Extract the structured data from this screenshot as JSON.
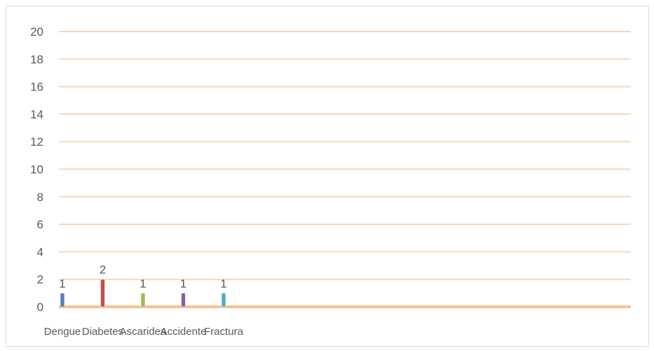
{
  "chart_data": {
    "type": "bar",
    "categories": [
      "Dengue",
      "Diabetes",
      "Ascaridea",
      "Accidente",
      "Fractura"
    ],
    "values": [
      1,
      2,
      1,
      1,
      1
    ],
    "data_labels": [
      "1",
      "2",
      "1",
      "1",
      "1"
    ],
    "title": "",
    "xlabel": "",
    "ylabel": "",
    "ylim": [
      0,
      20
    ],
    "yticks": [
      "0",
      "2",
      "4",
      "6",
      "8",
      "10",
      "12",
      "14",
      "16",
      "18",
      "20"
    ],
    "grid": true,
    "legend": "none",
    "colors": {
      "bars": [
        "#4f81bd",
        "#c0504d",
        "#9bbb59",
        "#8064a2",
        "#4bacc6"
      ],
      "gridline": "#fad7b4",
      "axis": "#fac090"
    }
  }
}
